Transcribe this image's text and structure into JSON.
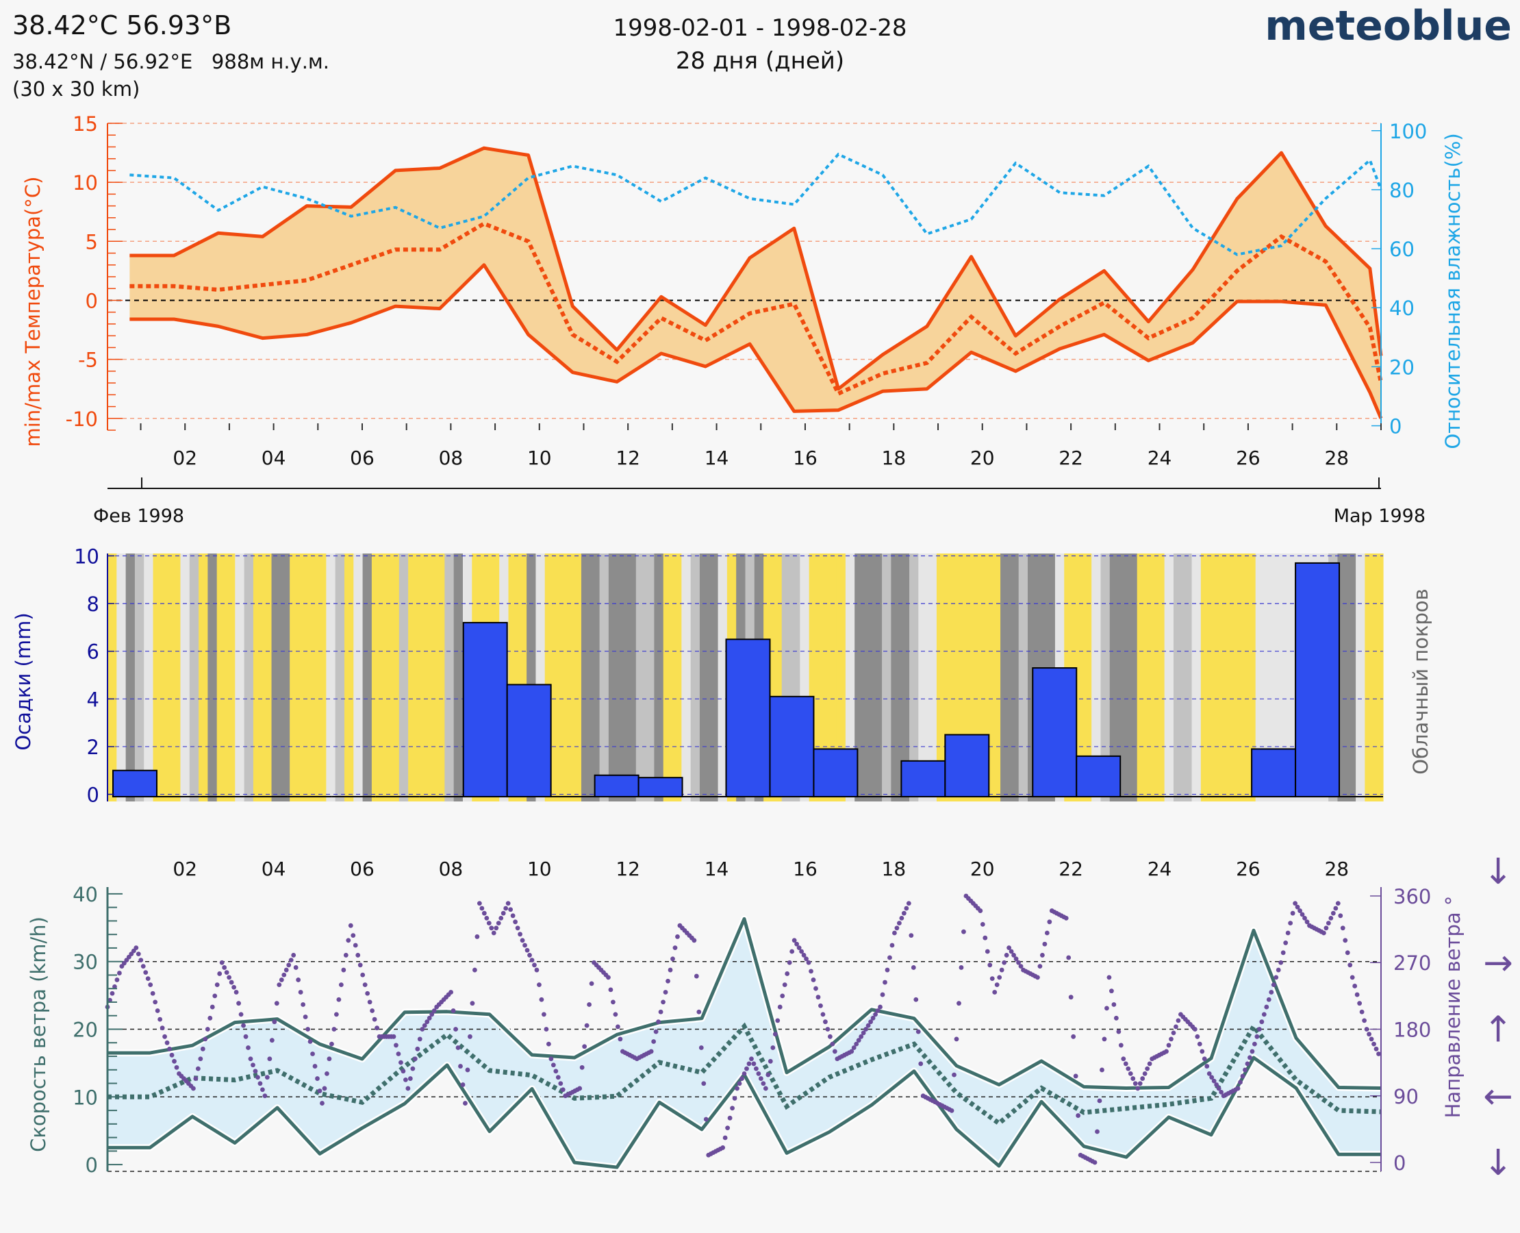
{
  "header": {
    "title": "38.42°C 56.93°B",
    "coords": "38.42°N / 56.92°E   988м н.у.м.",
    "grid": "(30 x 30 km)",
    "date_range": "1998-02-01 - 1998-02-28",
    "days": "28 дня (дней)",
    "brand": "meteoblue"
  },
  "colors": {
    "temp": "#f04a0e",
    "temp_fill": "#f7d49b",
    "humidity": "#1ea6e6",
    "precip": "#2e4ef0",
    "cloud_sun": "#f9e052",
    "wind": "#3f6f6c",
    "wind_fill": "#dbeef8",
    "wind_dir": "#6b4c9a",
    "axis_dark": "#10109a"
  },
  "chart_data": [
    {
      "type": "area",
      "name": "temperature-humidity",
      "ylabel": "min/max Температура(°C)",
      "y2label": "Относительная влажность(%)",
      "ylim": [
        -11,
        15
      ],
      "yticks": [
        -10,
        -5,
        0,
        5,
        10,
        15
      ],
      "y2lim": [
        -1.5,
        102.5
      ],
      "y2ticks": [
        0,
        20,
        40,
        60,
        80,
        100
      ],
      "xticks": [
        "02",
        "04",
        "06",
        "08",
        "10",
        "12",
        "14",
        "16",
        "18",
        "20",
        "22",
        "24",
        "26",
        "28"
      ],
      "month_labels": [
        "Фев 1998",
        "Мар 1998"
      ],
      "days": [
        0.5,
        1.5,
        2.5,
        3.5,
        4.5,
        5.5,
        6.5,
        7.5,
        8.5,
        9.5,
        10.5,
        11.5,
        12.5,
        13.5,
        14.5,
        15.5,
        16.5,
        17.5,
        18.5,
        19.5,
        20.5,
        21.5,
        22.5,
        23.5,
        24.5,
        25.5,
        26.5,
        27.5,
        28.5,
        28.75
      ],
      "series": [
        {
          "name": "max",
          "values": [
            3.8,
            3.8,
            5.7,
            5.4,
            8.0,
            7.9,
            11.0,
            11.2,
            12.9,
            12.3,
            -0.5,
            -4.2,
            0.3,
            -2.1,
            3.6,
            6.1,
            -7.5,
            -4.6,
            -2.2,
            3.7,
            -3.0,
            0.1,
            2.5,
            -1.8,
            2.6,
            8.6,
            12.5,
            6.3,
            2.7,
            -4.7
          ]
        },
        {
          "name": "mean",
          "values": [
            1.2,
            1.2,
            0.9,
            1.3,
            1.7,
            3.0,
            4.3,
            4.3,
            6.5,
            5.0,
            -2.9,
            -5.2,
            -1.5,
            -3.4,
            -1.1,
            -0.3,
            -7.9,
            -6.2,
            -5.3,
            -1.4,
            -4.5,
            -2.2,
            -0.2,
            -3.2,
            -1.5,
            2.5,
            5.4,
            3.3,
            -2.3,
            -7.0
          ]
        },
        {
          "name": "min",
          "values": [
            -1.6,
            -1.6,
            -2.2,
            -3.2,
            -2.9,
            -1.9,
            -0.5,
            -0.7,
            3.0,
            -2.9,
            -6.1,
            -6.9,
            -4.5,
            -5.6,
            -3.7,
            -9.4,
            -9.3,
            -7.7,
            -7.5,
            -4.4,
            -6.0,
            -4.1,
            -2.9,
            -5.1,
            -3.6,
            -0.1,
            -0.1,
            -0.4,
            -7.8,
            -10.0
          ]
        },
        {
          "name": "humidity",
          "values": [
            85,
            84,
            73,
            81,
            77,
            71,
            74,
            67,
            71,
            84,
            88,
            85,
            76,
            84,
            77,
            75,
            92,
            85,
            65,
            70,
            89,
            79,
            78,
            88,
            67,
            58,
            61,
            77,
            90,
            80
          ]
        }
      ],
      "zero_line": 0
    },
    {
      "type": "bar",
      "name": "precipitation-cloud",
      "ylabel": "Осадки (mm)",
      "y2label": "Облачный покров",
      "ylim": [
        -0.3,
        10.1
      ],
      "yticks": [
        0,
        2,
        4,
        6,
        8,
        10
      ],
      "precip": [
        1.0,
        0,
        0,
        0,
        0,
        0,
        0,
        0,
        7.2,
        4.6,
        0,
        0.8,
        0.7,
        0,
        6.5,
        4.1,
        1.9,
        0,
        1.4,
        2.5,
        0,
        5.3,
        1.6,
        0,
        0,
        0,
        1.9,
        9.7,
        0
      ],
      "cloud_pattern": [
        0,
        1,
        3,
        2,
        1,
        0,
        0,
        0,
        1,
        2,
        0,
        3,
        0,
        0,
        1,
        2,
        0,
        0,
        3,
        3,
        0,
        0,
        0,
        0,
        1,
        2,
        0,
        1,
        3,
        0,
        0,
        0,
        2,
        0,
        0,
        0,
        0,
        2,
        3,
        1,
        0,
        0,
        0,
        1,
        0,
        0,
        3,
        1,
        0,
        0,
        0,
        0,
        3,
        3,
        2,
        3,
        3,
        3,
        2,
        2,
        3,
        0,
        0,
        1,
        2,
        3,
        3,
        1,
        0,
        3,
        2,
        3,
        0,
        0,
        2,
        2,
        1,
        0,
        0,
        0,
        0,
        1,
        3,
        3,
        3,
        2,
        3,
        3,
        2,
        1,
        1,
        0,
        0,
        0,
        0,
        0,
        0,
        0,
        3,
        3,
        2,
        3,
        3,
        3,
        1,
        0,
        0,
        0,
        1,
        2,
        3,
        3,
        3,
        0,
        0,
        0,
        1,
        2,
        2,
        1,
        0,
        0,
        0,
        0,
        0,
        0,
        1,
        1,
        1,
        1,
        1,
        1,
        1,
        1,
        2,
        3,
        3,
        1,
        0,
        0
      ]
    },
    {
      "type": "line",
      "name": "wind",
      "ylabel": "Скорость ветра (km/h)",
      "y2label": "Направление ветра °",
      "ylim": [
        -1,
        41
      ],
      "yticks": [
        0,
        10,
        20,
        30,
        40
      ],
      "y2lim": [
        -12,
        372
      ],
      "y2ticks": [
        0,
        90,
        180,
        270,
        360
      ],
      "xticks": [
        "02",
        "04",
        "06",
        "08",
        "10",
        "12",
        "14",
        "16",
        "18",
        "20",
        "22",
        "24",
        "26",
        "28"
      ],
      "series": [
        {
          "name": "max",
          "values": [
            16.5,
            16.5,
            17.6,
            21.0,
            21.5,
            17.8,
            15.6,
            22.5,
            22.6,
            22.2,
            16.2,
            15.8,
            19.2,
            21.0,
            21.6,
            36.3,
            13.6,
            17.4,
            22.9,
            21.6,
            14.6,
            11.8,
            15.3,
            11.5,
            11.3,
            11.4,
            15.7,
            34.6,
            18.7,
            11.4,
            11.3
          ]
        },
        {
          "name": "mean",
          "values": [
            10.0,
            10.0,
            12.8,
            12.5,
            13.9,
            10.5,
            9.2,
            14.5,
            19.2,
            13.9,
            13.2,
            9.8,
            10.1,
            15.1,
            13.6,
            20.4,
            8.6,
            12.9,
            15.5,
            17.8,
            10.6,
            6.1,
            11.3,
            7.7,
            8.3,
            8.9,
            9.8,
            20.4,
            12.5,
            8.0,
            7.8
          ]
        },
        {
          "name": "min",
          "values": [
            2.5,
            2.5,
            7.1,
            3.2,
            8.4,
            1.6,
            5.4,
            9.0,
            14.7,
            4.9,
            11.2,
            0.3,
            -0.4,
            9.2,
            5.2,
            13.3,
            1.7,
            4.8,
            8.8,
            13.8,
            5.2,
            -0.2,
            9.3,
            2.7,
            1.1,
            7.0,
            4.4,
            15.8,
            11.3,
            1.5,
            1.5
          ]
        },
        {
          "name": "direction",
          "values": [
            210,
            265,
            290,
            240,
            170,
            120,
            100,
            180,
            270,
            230,
            140,
            90,
            240,
            280,
            180,
            80,
            200,
            320,
            240,
            170,
            170,
            100,
            180,
            210,
            230,
            80,
            350,
            310,
            350,
            300,
            260,
            140,
            90,
            100,
            270,
            250,
            150,
            140,
            150,
            230,
            320,
            300,
            10,
            20,
            100,
            140,
            100,
            210,
            300,
            270,
            200,
            140,
            150,
            180,
            210,
            310,
            350,
            90,
            80,
            70,
            360,
            340,
            230,
            290,
            260,
            250,
            340,
            330,
            10,
            0,
            250,
            140,
            100,
            140,
            150,
            200,
            180,
            120,
            90,
            100,
            150,
            210,
            270,
            350,
            320,
            310,
            350,
            250,
            180,
            140
          ]
        }
      ],
      "hours_per_point": 7.5,
      "arrows": [
        "↓",
        "→",
        "↑",
        "←",
        "↓"
      ]
    }
  ]
}
